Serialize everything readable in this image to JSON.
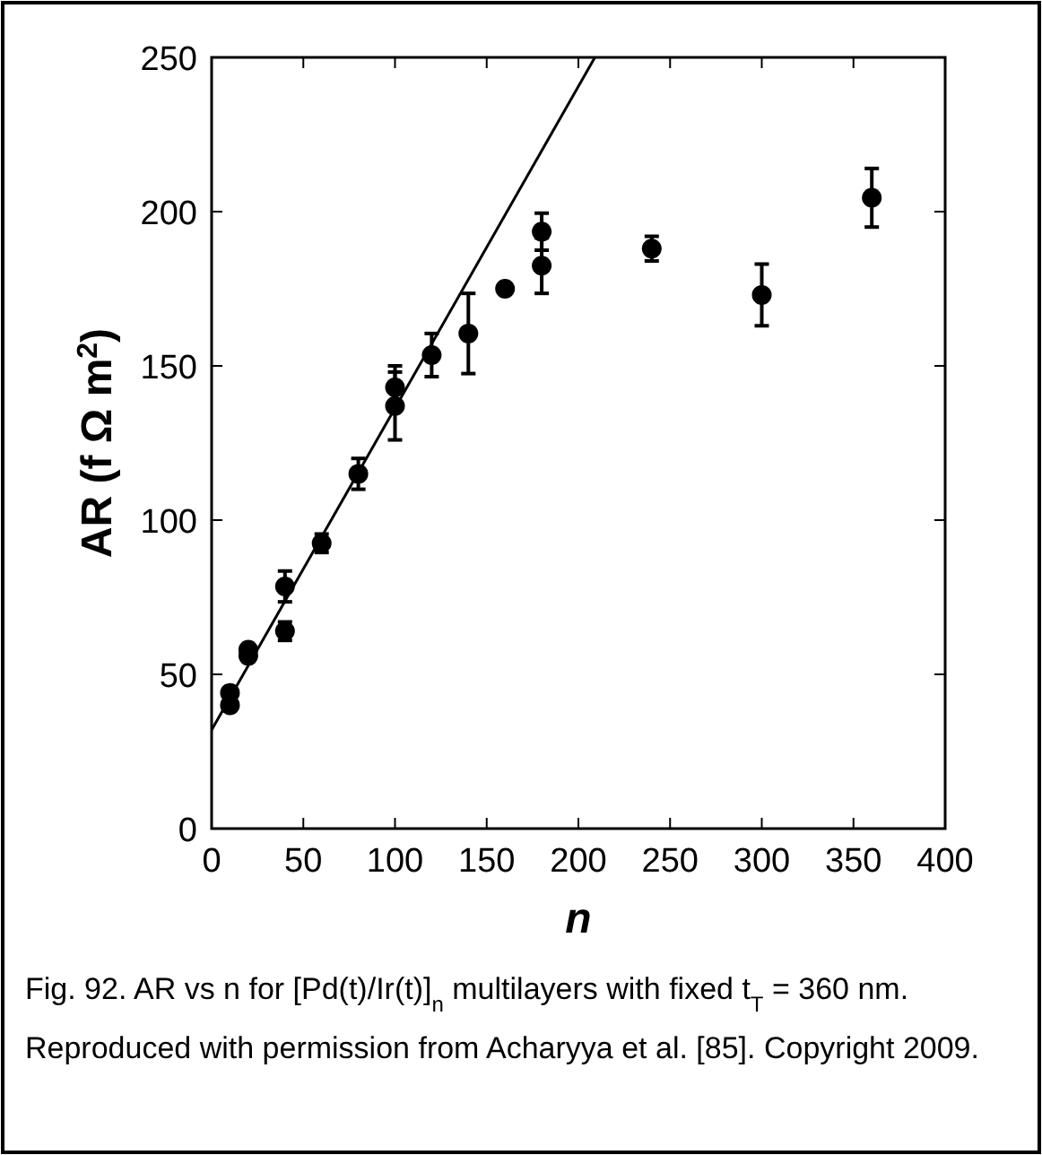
{
  "chart_data": {
    "type": "scatter",
    "xlabel": "n",
    "ylabel": "AR (f Ω m$^{2}$)",
    "xlim": [
      0,
      400
    ],
    "xticks": [
      0,
      50,
      100,
      150,
      200,
      250,
      300,
      350,
      400
    ],
    "ylim": [
      0,
      250
    ],
    "yticks": [
      0,
      50,
      100,
      150,
      200,
      250
    ],
    "grid": false,
    "marker": "circle",
    "series": [
      {
        "color": "#000000",
        "x": [
          10,
          10,
          20,
          20,
          40,
          40,
          60,
          80,
          100,
          100,
          120,
          140,
          160,
          180,
          180,
          240,
          300,
          360
        ],
        "values": [
          44,
          40,
          56,
          58,
          78.5,
          64,
          92.5,
          115,
          143,
          137,
          153.5,
          160.5,
          175,
          193.5,
          182.5,
          188,
          173,
          204.5
        ],
        "errors": [
          null,
          null,
          null,
          null,
          5,
          3,
          3,
          5,
          7,
          11,
          7,
          13,
          null,
          6,
          9,
          4,
          10,
          9.5
        ]
      },
      {
        "type": "line",
        "color": "#000000",
        "x": [
          0,
          209
        ],
        "values": [
          32,
          250
        ],
        "marker": "none",
        "line_style": "solid"
      }
    ],
    "annotations": [
      "Fig. 92.  AR vs n for [Pd(t)/Ir(t)]$_{n}$ multilayers with fixed t$_{T}$ = 360 nm. Reproduced with permission from Acharyya et al. [85]. Copyright 2009."
    ]
  }
}
